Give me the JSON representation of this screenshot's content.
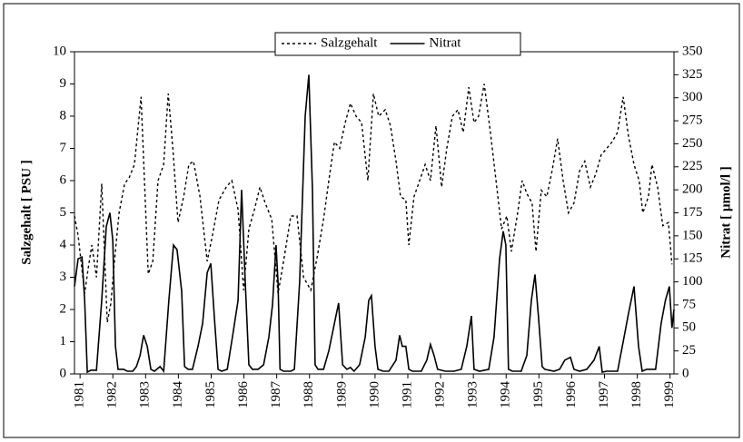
{
  "chart_data": {
    "type": "line",
    "ylabel": "Salzgehalt [ PSU ]",
    "y2label": "Nitrat [ µmol/l ]",
    "xlim": [
      1980.83,
      1999.12
    ],
    "xticks": [
      1981,
      1982,
      1983,
      1984,
      1985,
      1986,
      1987,
      1988,
      1989,
      1990,
      1991,
      1992,
      1993,
      1994,
      1995,
      1996,
      1997,
      1998,
      1999
    ],
    "ylim": [
      0,
      10
    ],
    "yticks": [
      0,
      1,
      2,
      3,
      4,
      5,
      6,
      7,
      8,
      9,
      10
    ],
    "y2lim": [
      0,
      350
    ],
    "y2ticks": [
      0,
      25,
      50,
      75,
      100,
      125,
      150,
      175,
      200,
      225,
      250,
      275,
      300,
      325,
      350
    ],
    "legend": "top",
    "series": [
      {
        "name": "Salzgehalt",
        "color": "#000000",
        "dash": "dotted",
        "x": [
          1980.83,
          1980.94,
          1981.14,
          1981.25,
          1981.36,
          1981.5,
          1981.66,
          1981.83,
          1981.94,
          1982.05,
          1982.19,
          1982.36,
          1982.5,
          1982.66,
          1982.86,
          1983.08,
          1983.22,
          1983.38,
          1983.55,
          1983.69,
          1983.83,
          1983.99,
          1984.16,
          1984.32,
          1984.46,
          1984.66,
          1984.88,
          1985.04,
          1985.24,
          1985.46,
          1985.63,
          1985.82,
          1985.99,
          1986.15,
          1986.32,
          1986.49,
          1986.65,
          1986.85,
          1987.04,
          1987.21,
          1987.43,
          1987.62,
          1987.82,
          1988.04,
          1988.23,
          1988.43,
          1988.59,
          1988.76,
          1988.92,
          1989.09,
          1989.25,
          1989.42,
          1989.59,
          1989.78,
          1989.95,
          1990.11,
          1990.31,
          1990.47,
          1990.64,
          1990.78,
          1990.94,
          1991.03,
          1991.19,
          1991.36,
          1991.53,
          1991.69,
          1991.86,
          1992.03,
          1992.19,
          1992.36,
          1992.53,
          1992.69,
          1992.86,
          1993.02,
          1993.16,
          1993.33,
          1993.52,
          1993.69,
          1993.86,
          1994.02,
          1994.16,
          1994.35,
          1994.49,
          1994.63,
          1994.79,
          1994.91,
          1995.07,
          1995.24,
          1995.4,
          1995.57,
          1995.74,
          1995.9,
          1996.07,
          1996.24,
          1996.4,
          1996.57,
          1996.73,
          1996.9,
          1997.07,
          1997.23,
          1997.4,
          1997.57,
          1997.73,
          1997.9,
          1998.06,
          1998.17,
          1998.34,
          1998.45,
          1998.62,
          1998.78,
          1998.95,
          1999.06
        ],
        "values": [
          4.9,
          4.3,
          2.5,
          3.3,
          4.0,
          3.0,
          5.9,
          1.6,
          2.2,
          3.5,
          5.0,
          5.9,
          6.1,
          6.5,
          8.6,
          3.1,
          3.5,
          6.0,
          6.5,
          8.7,
          7.0,
          4.7,
          5.5,
          6.5,
          6.6,
          5.5,
          3.5,
          4.3,
          5.4,
          5.8,
          6.0,
          5.1,
          2.6,
          4.5,
          5.1,
          5.8,
          5.3,
          4.8,
          2.5,
          3.5,
          4.9,
          4.9,
          3.0,
          2.6,
          3.6,
          4.8,
          6.0,
          7.2,
          7.0,
          7.8,
          8.4,
          8.0,
          7.8,
          6.0,
          8.7,
          8.0,
          8.2,
          7.7,
          6.6,
          5.5,
          5.4,
          4.0,
          5.5,
          6.0,
          6.5,
          6.0,
          7.7,
          5.8,
          7.0,
          8.0,
          8.2,
          7.5,
          8.9,
          7.8,
          8.0,
          9.0,
          7.5,
          6.0,
          4.5,
          4.9,
          3.8,
          5.0,
          6.0,
          5.6,
          5.3,
          3.8,
          5.7,
          5.5,
          6.3,
          7.3,
          6.0,
          5.0,
          5.3,
          6.3,
          6.6,
          5.8,
          6.2,
          6.8,
          7.0,
          7.2,
          7.5,
          8.6,
          7.4,
          6.5,
          6.0,
          5.0,
          5.5,
          6.5,
          5.8,
          4.6,
          4.7,
          3.4
        ]
      },
      {
        "name": "Nitrat",
        "color": "#000000",
        "dash": "solid",
        "axis": "y2",
        "x": [
          1980.83,
          1980.94,
          1981.06,
          1981.14,
          1981.22,
          1981.33,
          1981.5,
          1981.66,
          1981.8,
          1981.91,
          1982.0,
          1982.08,
          1982.16,
          1982.33,
          1982.44,
          1982.61,
          1982.72,
          1982.83,
          1982.94,
          1983.05,
          1983.16,
          1983.27,
          1983.44,
          1983.55,
          1983.71,
          1983.85,
          1983.96,
          1984.1,
          1984.19,
          1984.3,
          1984.43,
          1984.6,
          1984.74,
          1984.88,
          1984.99,
          1985.1,
          1985.21,
          1985.32,
          1985.49,
          1985.65,
          1985.82,
          1985.93,
          1986.04,
          1986.15,
          1986.26,
          1986.43,
          1986.6,
          1986.76,
          1986.87,
          1986.98,
          1987.04,
          1987.1,
          1987.21,
          1987.43,
          1987.54,
          1987.7,
          1987.87,
          1987.98,
          1988.09,
          1988.17,
          1988.26,
          1988.43,
          1988.59,
          1988.76,
          1988.89,
          1989.01,
          1989.14,
          1989.25,
          1989.36,
          1989.53,
          1989.7,
          1989.81,
          1989.89,
          1990.0,
          1990.09,
          1990.25,
          1990.42,
          1990.64,
          1990.75,
          1990.83,
          1990.94,
          1991.03,
          1991.14,
          1991.41,
          1991.58,
          1991.69,
          1991.8,
          1991.91,
          1992.14,
          1992.41,
          1992.63,
          1992.8,
          1992.94,
          1993.02,
          1993.19,
          1993.47,
          1993.63,
          1993.8,
          1993.91,
          1993.99,
          1994.07,
          1994.19,
          1994.46,
          1994.63,
          1994.77,
          1994.88,
          1994.99,
          1995.1,
          1995.18,
          1995.46,
          1995.63,
          1995.79,
          1995.96,
          1996.07,
          1996.24,
          1996.46,
          1996.68,
          1996.84,
          1996.93,
          1997.07,
          1997.4,
          1997.57,
          1997.73,
          1997.9,
          1998.04,
          1998.15,
          1998.29,
          1998.56,
          1998.73,
          1998.86,
          1998.98,
          1999.06,
          1999.12
        ],
        "values": [
          95,
          125,
          127,
          80,
          2,
          4,
          4,
          80,
          160,
          175,
          145,
          30,
          5,
          5,
          3,
          3,
          8,
          20,
          42,
          30,
          5,
          3,
          8,
          3,
          80,
          140,
          135,
          90,
          8,
          5,
          5,
          30,
          55,
          110,
          120,
          60,
          5,
          3,
          5,
          40,
          80,
          200,
          100,
          10,
          5,
          5,
          10,
          40,
          75,
          140,
          100,
          5,
          3,
          3,
          5,
          100,
          280,
          325,
          200,
          10,
          5,
          5,
          25,
          55,
          77,
          10,
          5,
          7,
          3,
          10,
          40,
          80,
          85,
          30,
          5,
          3,
          3,
          15,
          42,
          30,
          30,
          5,
          3,
          3,
          15,
          32,
          20,
          5,
          3,
          3,
          5,
          30,
          63,
          5,
          3,
          5,
          40,
          125,
          155,
          140,
          5,
          3,
          3,
          20,
          80,
          108,
          60,
          8,
          5,
          3,
          5,
          15,
          18,
          5,
          3,
          5,
          15,
          30,
          2,
          3,
          3,
          35,
          65,
          95,
          30,
          3,
          5,
          5,
          55,
          80,
          95,
          50,
          70
        ]
      }
    ]
  }
}
